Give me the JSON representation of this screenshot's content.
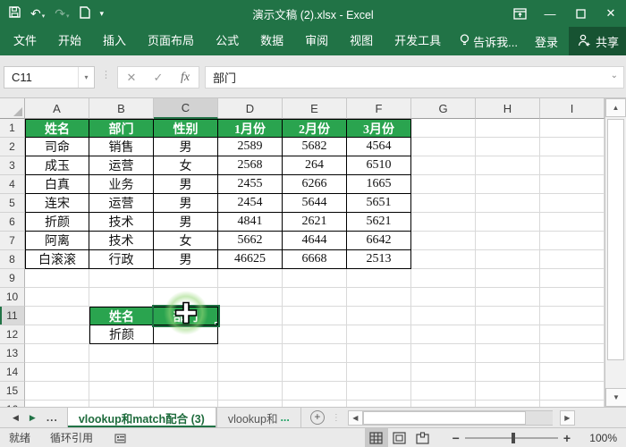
{
  "titlebar": {
    "title": "演示文稿 (2).xlsx - Excel",
    "qat_glyphs": {
      "undo": "↶",
      "redo": "↷",
      "dropdown": "▾"
    },
    "window_glyphs": {
      "minimize": "—",
      "close": "✕"
    }
  },
  "ribbon": {
    "tabs": [
      "文件",
      "开始",
      "插入",
      "页面布局",
      "公式",
      "数据",
      "审阅",
      "视图",
      "开发工具"
    ],
    "tell_me": "告诉我...",
    "login": "登录",
    "share": "共享"
  },
  "formula_bar": {
    "name_box": "C11",
    "name_box_arrow": "▾",
    "cancel_glyph": "✕",
    "enter_glyph": "✓",
    "fx_label": "fx",
    "formula": "部门",
    "expand_arrow": "⌄"
  },
  "sheet": {
    "columns": [
      "A",
      "B",
      "C",
      "D",
      "E",
      "F",
      "G",
      "H",
      "I"
    ],
    "row_count": 16,
    "selected_column": "C",
    "selected_row": 11,
    "selected_cell": "C11",
    "table1": {
      "origin": "A1",
      "headers": [
        "姓名",
        "部门",
        "性别",
        "1月份",
        "2月份",
        "3月份"
      ],
      "rows": [
        [
          "司命",
          "销售",
          "男",
          "2589",
          "5682",
          "4564"
        ],
        [
          "成玉",
          "运营",
          "女",
          "2568",
          "264",
          "6510"
        ],
        [
          "白真",
          "业务",
          "男",
          "2455",
          "6266",
          "1665"
        ],
        [
          "连宋",
          "运营",
          "男",
          "2454",
          "5644",
          "5651"
        ],
        [
          "折颜",
          "技术",
          "男",
          "4841",
          "2621",
          "5621"
        ],
        [
          "阿离",
          "技术",
          "女",
          "5662",
          "4644",
          "6642"
        ],
        [
          "白滚滚",
          "行政",
          "男",
          "46625",
          "6668",
          "2513"
        ]
      ]
    },
    "table2": {
      "origin": "B11",
      "headers": [
        "姓名",
        "部门"
      ],
      "rows": [
        [
          "折颜",
          ""
        ]
      ]
    }
  },
  "sheet_tabs": {
    "nav_left": "◀",
    "nav_right": "▶",
    "nav_ellipsis": "...",
    "active": "vlookup和match配合 (3)",
    "second": "vlookup和",
    "second_ellipsis": "...",
    "add_glyph": "+",
    "hscroll_left": "◀",
    "hscroll_right": "▶"
  },
  "status_bar": {
    "mode": "就绪",
    "circular_ref": "循环引用",
    "zoom_out": "−",
    "zoom_in": "+",
    "zoom_level": "100%"
  },
  "scrollbar_glyphs": {
    "up": "▲",
    "down": "▼"
  },
  "colors": {
    "excel_green": "#217346",
    "header_fill": "#2aa44f",
    "selection": "#1d6f42"
  }
}
